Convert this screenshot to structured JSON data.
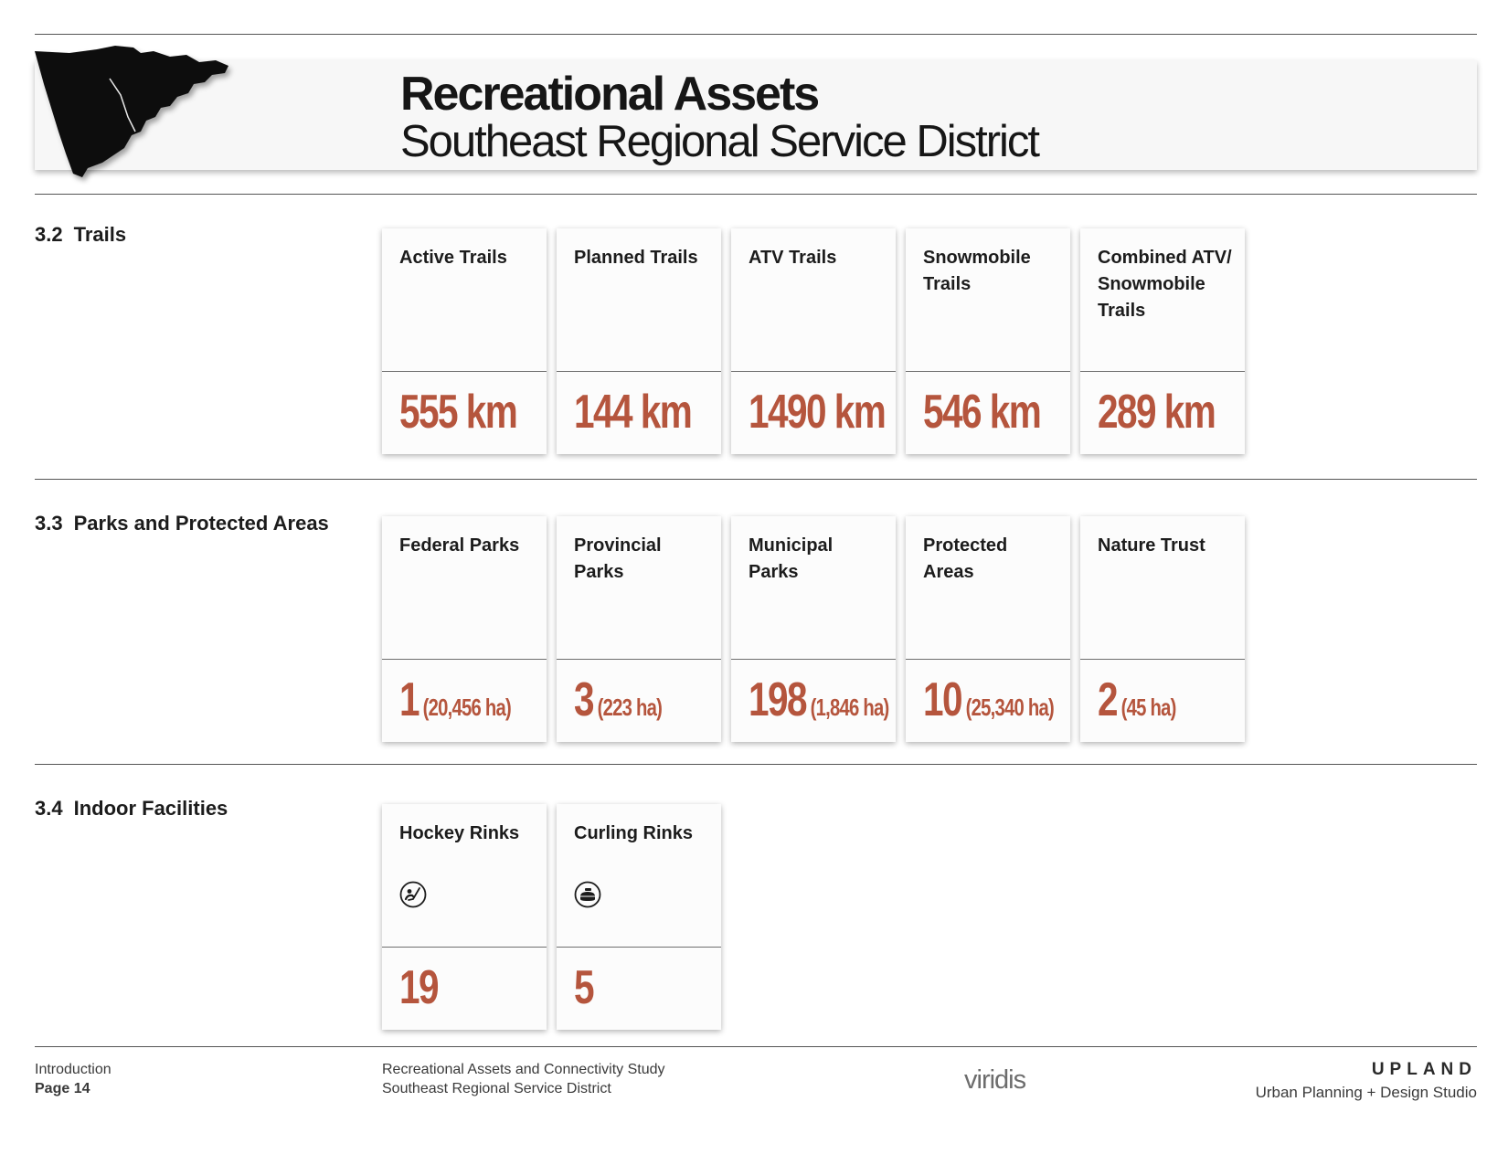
{
  "header": {
    "title": "Recreational Assets",
    "subtitle": "Southeast Regional Service District"
  },
  "sections": [
    {
      "number": "3.2",
      "label": "Trails",
      "cards": [
        {
          "title": "Active Trails",
          "value": "555 km"
        },
        {
          "title": "Planned Trails",
          "value": "144 km"
        },
        {
          "title": "ATV Trails",
          "value": "1490 km"
        },
        {
          "title": "Snowmobile Trails",
          "value": "546 km"
        },
        {
          "title": "Combined ATV/ Snowmobile Trails",
          "value": "289 km"
        }
      ]
    },
    {
      "number": "3.3",
      "label": "Parks and Protected Areas",
      "cards": [
        {
          "title": "Federal Parks",
          "value": "1",
          "area": "(20,456 ha)"
        },
        {
          "title": "Provincial Parks",
          "value": "3",
          "area": "(223 ha)"
        },
        {
          "title": "Municipal Parks",
          "value": "198",
          "area": "(1,846 ha)"
        },
        {
          "title": "Protected Areas",
          "value": "10",
          "area": "(25,340 ha)"
        },
        {
          "title": "Nature Trust",
          "value": "2",
          "area": "(45 ha)"
        }
      ]
    },
    {
      "number": "3.4",
      "label": "Indoor Facilities",
      "cards": [
        {
          "title": "Hockey Rinks",
          "value": "19",
          "icon": "hockey-icon"
        },
        {
          "title": "Curling Rinks",
          "value": "5",
          "icon": "curling-stone-icon"
        }
      ]
    }
  ],
  "footer": {
    "section": "Introduction",
    "page": "Page 14",
    "study_title": "Recreational Assets and Connectivity Study",
    "study_subtitle": "Southeast Regional Service District",
    "viridis_logo": "viridis",
    "upland_logo": "UPLAND",
    "upland_tagline": "Urban Planning + Design Studio"
  },
  "colors": {
    "accent": "#b5553d",
    "text": "#1c1c1c",
    "rule": "#555555"
  }
}
